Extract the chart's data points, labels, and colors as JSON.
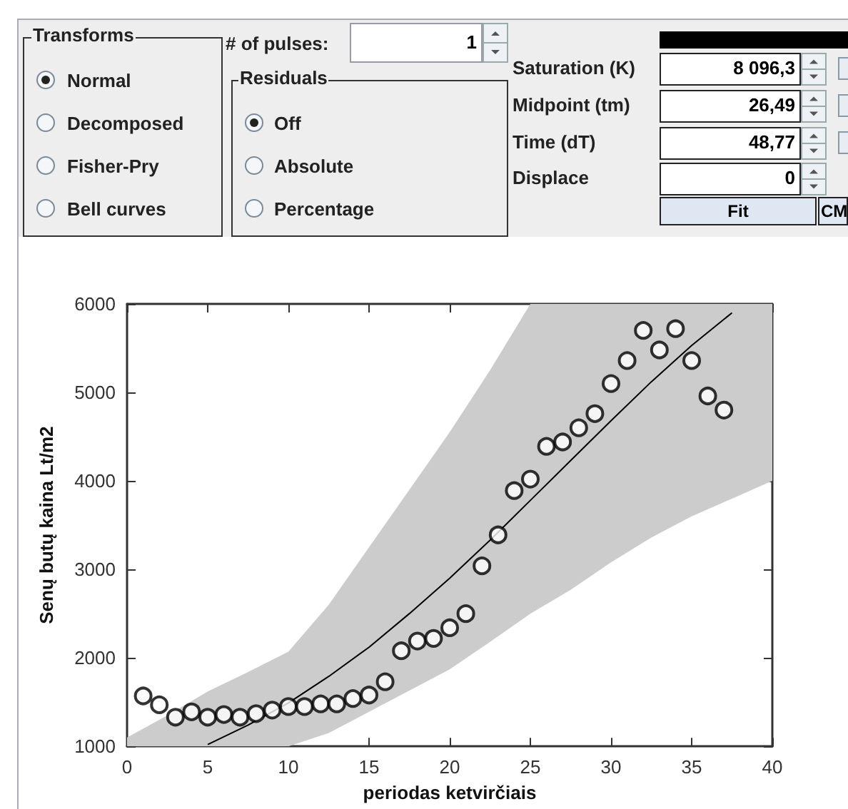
{
  "chart_data": [
    {
      "type": "other",
      "annotations": [
        "Transforms",
        "Normal",
        "Decomposed",
        "Fisher-Pry",
        "Bell curves",
        "# of pulses:",
        "1",
        "Residuals",
        "Off",
        "Absolute",
        "Percentage",
        "Saturation (K)",
        "8 096,3",
        "Midpoint (tm)",
        "26,49",
        "Time (dT)",
        "48,77",
        "Displace",
        "0",
        "Fit",
        "CM"
      ]
    },
    {
      "type": "scatter",
      "xlabel": "periodas ketvirčiais",
      "ylabel": "Senų butų kaina Lt/m2",
      "xlim": [
        0,
        40
      ],
      "xticks": [
        0,
        5,
        10,
        15,
        20,
        25,
        30,
        35,
        40
      ],
      "ylim": [
        1000,
        6000
      ],
      "yticks": [
        1000,
        2000,
        3000,
        4000,
        5000,
        6000
      ],
      "grid": false,
      "marker": "circle",
      "series": [
        {
          "type": "scatter",
          "color": "#000000",
          "x": [
            1,
            2,
            3,
            4,
            5,
            6,
            7,
            8,
            9,
            10,
            11,
            12,
            13,
            14,
            15,
            16,
            17,
            18,
            19,
            20,
            21,
            22,
            23,
            24,
            25,
            26,
            27,
            28,
            29,
            30,
            31,
            32,
            33,
            34,
            35,
            36,
            37
          ],
          "values": [
            1570,
            1470,
            1330,
            1390,
            1330,
            1360,
            1330,
            1370,
            1410,
            1450,
            1450,
            1480,
            1480,
            1540,
            1580,
            1730,
            2080,
            2190,
            2220,
            2340,
            2500,
            3040,
            3390,
            3890,
            4020,
            4390,
            4440,
            4600,
            4760,
            5100,
            5360,
            5700,
            5480,
            5720,
            5360,
            4960,
            4800
          ]
        },
        {
          "type": "line",
          "color": "#000000",
          "marker": "none",
          "x": [
            0,
            2.5,
            5,
            7.5,
            10,
            12.5,
            15,
            17.5,
            20,
            22.5,
            25,
            27.5,
            30,
            32.5,
            35,
            37.5,
            40
          ],
          "values": [
            null,
            null,
            1020,
            1240,
            1490,
            1790,
            2120,
            2500,
            2900,
            3330,
            3780,
            4230,
            4680,
            5120,
            5530,
            5900,
            null
          ],
          "lower": [
            1000,
            1000,
            1000,
            1000,
            1000,
            1150,
            1390,
            1630,
            1870,
            2180,
            2500,
            2770,
            3080,
            3360,
            3600,
            3800,
            4000
          ],
          "upper": [
            1100,
            1350,
            1620,
            1840,
            2070,
            2600,
            3250,
            3900,
            4550,
            5250,
            6000,
            6000,
            6000,
            6000,
            6000,
            6000,
            6000
          ]
        }
      ]
    }
  ]
}
